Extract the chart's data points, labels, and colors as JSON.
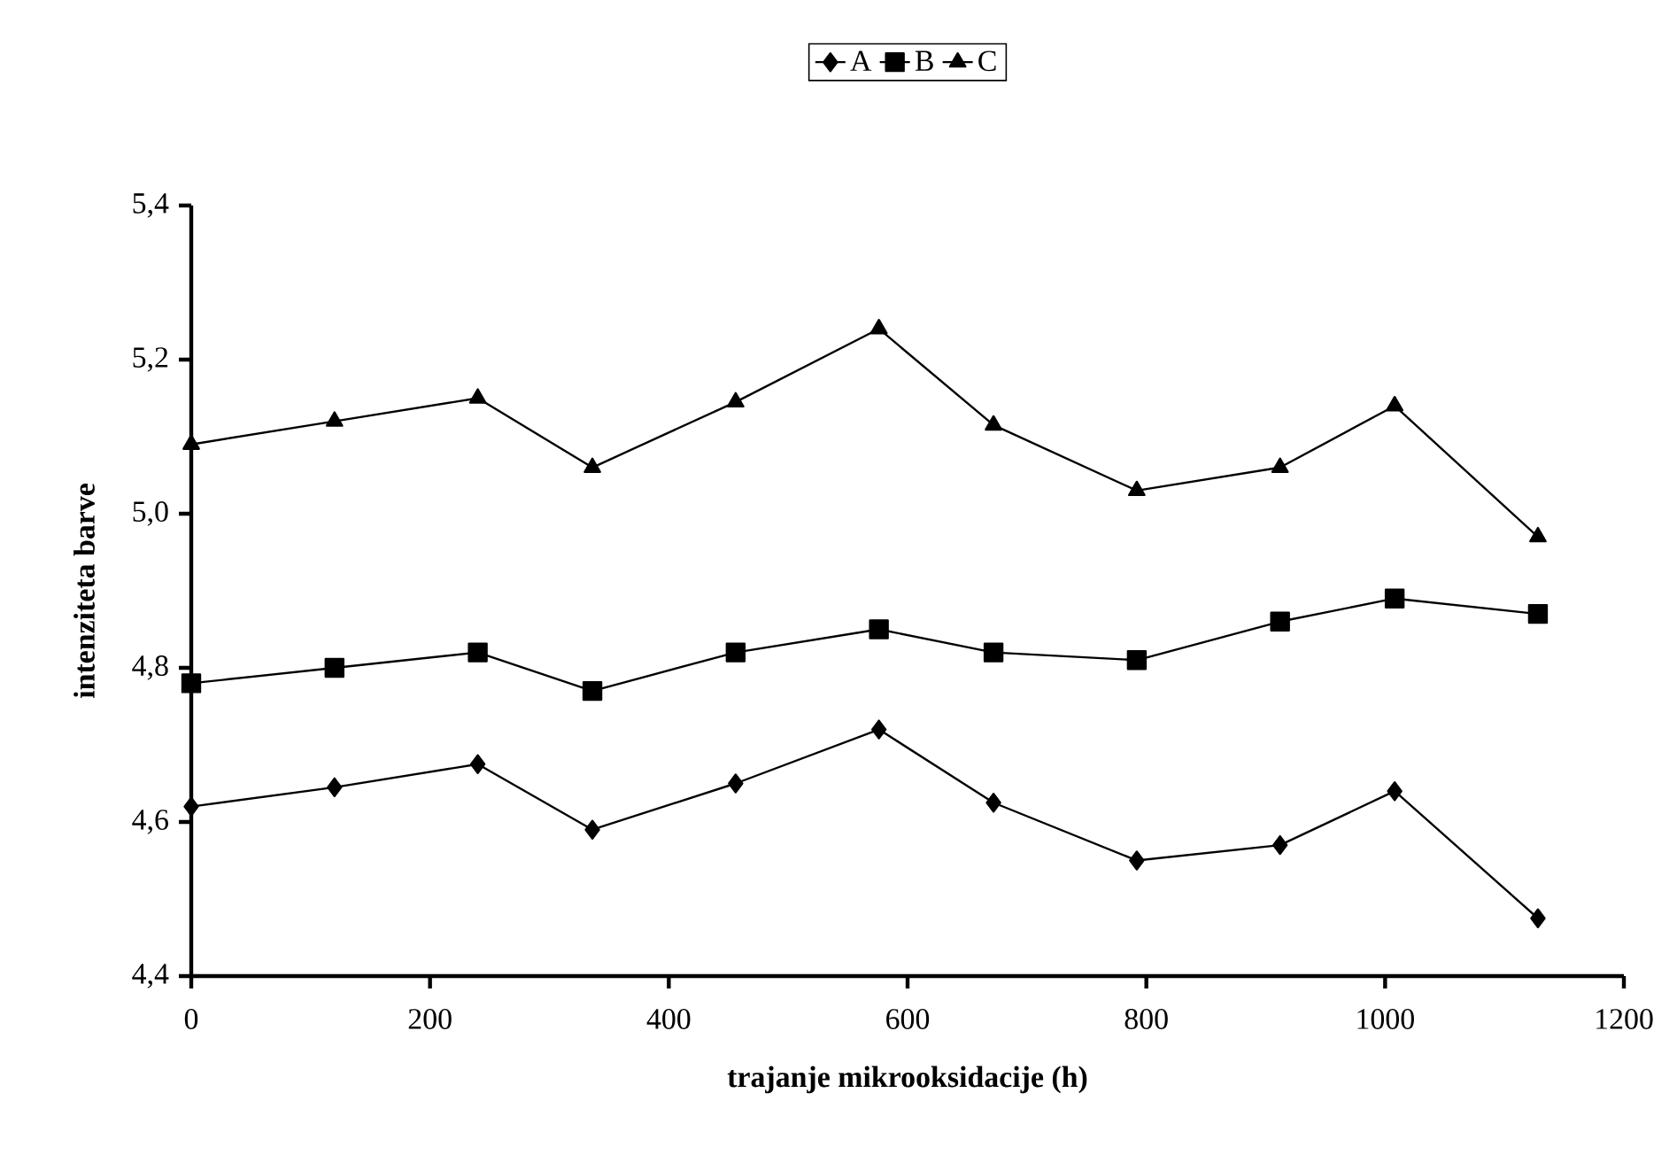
{
  "chart_data": {
    "type": "line",
    "xlabel": "trajanje mikrooksidacije (h)",
    "ylabel": "intenziteta barve",
    "x": [
      0,
      120,
      240,
      336,
      456,
      576,
      672,
      792,
      912,
      1008,
      1128
    ],
    "series": [
      {
        "name": "A",
        "color": "#000000",
        "marker": "diamond",
        "values": [
          4.62,
          4.645,
          4.675,
          4.59,
          4.65,
          4.72,
          4.625,
          4.55,
          4.57,
          4.64,
          4.475
        ]
      },
      {
        "name": "B",
        "color": "#000000",
        "marker": "square",
        "values": [
          4.78,
          4.8,
          4.82,
          4.77,
          4.82,
          4.85,
          4.82,
          4.81,
          4.86,
          4.89,
          4.87
        ]
      },
      {
        "name": "C",
        "color": "#000000",
        "marker": "triangle",
        "values": [
          5.09,
          5.12,
          5.15,
          5.06,
          5.145,
          5.24,
          5.115,
          5.03,
          5.06,
          5.14,
          4.97
        ]
      }
    ],
    "xlim": [
      0,
      1200
    ],
    "xticks": [
      0,
      200,
      400,
      600,
      800,
      1000,
      1200
    ],
    "ylim": [
      4.4,
      5.4
    ],
    "yticks": [
      {
        "value": 4.4,
        "label": "4,4"
      },
      {
        "value": 4.6,
        "label": "4,6"
      },
      {
        "value": 4.8,
        "label": "4,8"
      },
      {
        "value": 5.0,
        "label": "5,0"
      },
      {
        "value": 5.2,
        "label": "5,2"
      },
      {
        "value": 5.4,
        "label": "5,4"
      }
    ],
    "grid": false,
    "legend": "top",
    "line_style": "solid"
  }
}
